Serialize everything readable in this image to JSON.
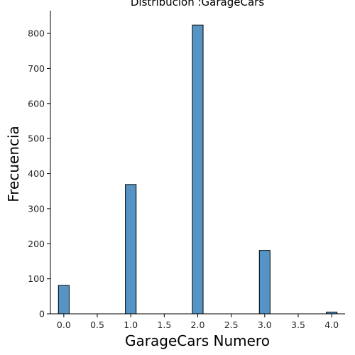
{
  "chart_data": {
    "type": "bar",
    "title": "Distribución :GarageCars",
    "xlabel": "GarageCars Numero",
    "ylabel": "Frecuencia",
    "bins": [
      {
        "x": 0,
        "value": 81
      },
      {
        "x": 1,
        "value": 369
      },
      {
        "x": 2,
        "value": 824
      },
      {
        "x": 3,
        "value": 181
      },
      {
        "x": 4,
        "value": 5
      }
    ],
    "xlim": [
      -0.2,
      4.2
    ],
    "ylim": [
      0,
      865
    ],
    "x_ticks": [
      0.0,
      0.5,
      1.0,
      1.5,
      2.0,
      2.5,
      3.0,
      3.5,
      4.0
    ],
    "x_tick_labels": [
      "0.0",
      "0.5",
      "1.0",
      "1.5",
      "2.0",
      "2.5",
      "3.0",
      "3.5",
      "4.0"
    ],
    "y_ticks": [
      0,
      100,
      200,
      300,
      400,
      500,
      600,
      700,
      800
    ],
    "y_tick_labels": [
      "0",
      "100",
      "200",
      "300",
      "400",
      "500",
      "600",
      "700",
      "800"
    ],
    "bar_width": 0.16,
    "bar_color": "#5594c4",
    "grid": false,
    "legend": "none"
  }
}
